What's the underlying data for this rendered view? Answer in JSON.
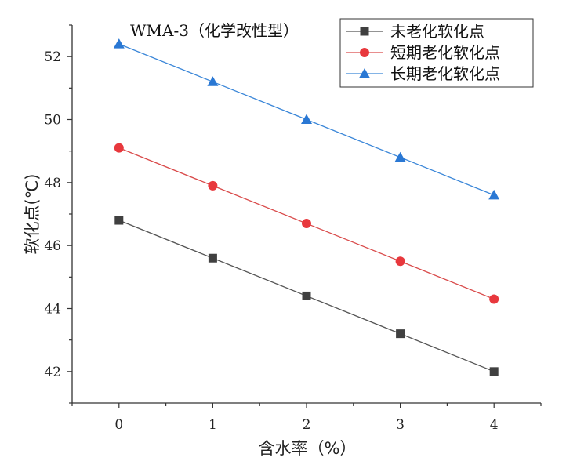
{
  "chart_data": {
    "type": "line",
    "title": "WMA-3（化学改性型）",
    "xlabel": "含水率（%）",
    "ylabel": "软化点(℃)",
    "x": [
      0,
      1,
      2,
      3,
      4
    ],
    "xlim": [
      -0.5,
      4.5
    ],
    "ylim": [
      41,
      53
    ],
    "xticks": [
      "0",
      "1",
      "2",
      "3",
      "4"
    ],
    "yticks": [
      "42",
      "44",
      "46",
      "48",
      "50",
      "52"
    ],
    "legend_position": "top-right",
    "series": [
      {
        "name": "未老化软化点",
        "marker": "square",
        "color": "#404040",
        "line_color": "#555555",
        "values": [
          46.8,
          45.6,
          44.4,
          43.2,
          42.0
        ]
      },
      {
        "name": "短期老化软化点",
        "marker": "circle",
        "color": "#e8383d",
        "line_color": "#d94a4a",
        "values": [
          49.1,
          47.9,
          46.7,
          45.5,
          44.3
        ]
      },
      {
        "name": "长期老化软化点",
        "marker": "triangle",
        "color": "#2a78d4",
        "line_color": "#3a86d8",
        "values": [
          52.4,
          51.2,
          50.0,
          48.8,
          47.6
        ]
      }
    ]
  }
}
